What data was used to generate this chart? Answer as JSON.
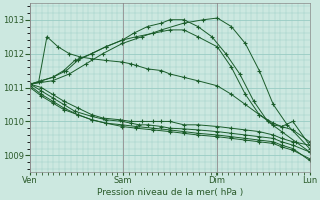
{
  "xlabel": "Pression niveau de la mer( hPa )",
  "bg_color": "#cce8e0",
  "grid_color": "#99ccc4",
  "line_color": "#1a5c2a",
  "ylim": [
    1008.5,
    1013.5
  ],
  "day_labels": [
    "Ven",
    "Sam",
    "Dim",
    "Lun"
  ],
  "day_positions": [
    0,
    0.333,
    0.667,
    1.0
  ],
  "series": [
    {
      "x": [
        0.0,
        0.08,
        0.13,
        0.17,
        0.22,
        0.27,
        0.33,
        0.37,
        0.42,
        0.47,
        0.5,
        0.55,
        0.6,
        0.65,
        0.7,
        0.75,
        0.8,
        0.85,
        0.9,
        0.95,
        1.0
      ],
      "y": [
        1011.1,
        1011.3,
        1011.5,
        1011.8,
        1012.0,
        1012.2,
        1012.4,
        1012.6,
        1012.8,
        1012.9,
        1013.0,
        1013.0,
        1012.8,
        1012.5,
        1012.0,
        1011.4,
        1010.6,
        1010.0,
        1009.7,
        1009.4,
        1009.1
      ]
    },
    {
      "x": [
        0.0,
        0.08,
        0.14,
        0.2,
        0.26,
        0.33,
        0.4,
        0.47,
        0.55,
        0.62,
        0.67,
        0.72,
        0.77,
        0.82,
        0.87,
        0.92,
        1.0
      ],
      "y": [
        1011.1,
        1011.2,
        1011.4,
        1011.7,
        1012.0,
        1012.3,
        1012.5,
        1012.7,
        1012.9,
        1013.0,
        1013.05,
        1012.8,
        1012.3,
        1011.5,
        1010.5,
        1009.9,
        1009.2
      ]
    },
    {
      "x": [
        0.0,
        0.04,
        0.08,
        0.12,
        0.16,
        0.22,
        0.27,
        0.33,
        0.38,
        0.44,
        0.5,
        0.55,
        0.6,
        0.67,
        0.72,
        0.77,
        0.82,
        0.87,
        0.9,
        0.94,
        1.0
      ],
      "y": [
        1011.1,
        1011.2,
        1011.3,
        1011.5,
        1011.8,
        1012.0,
        1012.2,
        1012.4,
        1012.5,
        1012.6,
        1012.7,
        1012.7,
        1012.5,
        1012.2,
        1011.6,
        1010.8,
        1010.2,
        1009.9,
        1009.85,
        1010.0,
        1009.3
      ]
    },
    {
      "x": [
        0.0,
        0.04,
        0.08,
        0.12,
        0.17,
        0.22,
        0.26,
        0.32,
        0.36,
        0.4,
        0.44,
        0.47,
        0.5,
        0.55,
        0.6,
        0.67,
        0.72,
        0.77,
        0.82,
        0.87,
        0.9,
        0.94,
        1.0
      ],
      "y": [
        1011.1,
        1011.0,
        1010.8,
        1010.6,
        1010.4,
        1010.2,
        1010.1,
        1010.05,
        1010.0,
        1010.0,
        1010.0,
        1010.0,
        1010.0,
        1009.9,
        1009.9,
        1009.85,
        1009.8,
        1009.75,
        1009.7,
        1009.6,
        1009.5,
        1009.4,
        1009.3
      ]
    },
    {
      "x": [
        0.0,
        0.04,
        0.08,
        0.12,
        0.16,
        0.22,
        0.27,
        0.33,
        0.36,
        0.39,
        0.42,
        0.47,
        0.5,
        0.55,
        0.6,
        0.67,
        0.72,
        0.77,
        0.82,
        0.87,
        0.9,
        0.94,
        1.0
      ],
      "y": [
        1011.1,
        1010.9,
        1010.7,
        1010.5,
        1010.3,
        1010.15,
        1010.05,
        1010.0,
        1009.95,
        1009.9,
        1009.9,
        1009.85,
        1009.8,
        1009.78,
        1009.75,
        1009.7,
        1009.65,
        1009.6,
        1009.55,
        1009.5,
        1009.4,
        1009.3,
        1009.1
      ]
    },
    {
      "x": [
        0.0,
        0.03,
        0.06,
        0.1,
        0.14,
        0.18,
        0.22,
        0.27,
        0.33,
        0.36,
        0.38,
        0.42,
        0.47,
        0.5,
        0.55,
        0.6,
        0.67,
        0.72,
        0.77,
        0.82,
        0.87,
        0.9,
        0.94,
        1.0
      ],
      "y": [
        1011.1,
        1011.15,
        1012.5,
        1012.2,
        1012.0,
        1011.9,
        1011.85,
        1011.8,
        1011.75,
        1011.7,
        1011.65,
        1011.55,
        1011.5,
        1011.4,
        1011.3,
        1011.2,
        1011.05,
        1010.8,
        1010.5,
        1010.2,
        1009.95,
        1009.85,
        1009.75,
        1009.4
      ]
    },
    {
      "x": [
        0.0,
        0.04,
        0.08,
        0.12,
        0.17,
        0.22,
        0.27,
        0.33,
        0.38,
        0.44,
        0.5,
        0.55,
        0.6,
        0.67,
        0.72,
        0.77,
        0.82,
        0.87,
        0.9,
        0.94,
        1.0
      ],
      "y": [
        1011.05,
        1010.8,
        1010.6,
        1010.4,
        1010.2,
        1010.05,
        1009.95,
        1009.85,
        1009.8,
        1009.75,
        1009.7,
        1009.65,
        1009.6,
        1009.55,
        1009.5,
        1009.45,
        1009.4,
        1009.35,
        1009.25,
        1009.15,
        1008.9
      ]
    },
    {
      "x": [
        0.0,
        0.04,
        0.08,
        0.12,
        0.17,
        0.22,
        0.27,
        0.33,
        0.38,
        0.44,
        0.5,
        0.55,
        0.6,
        0.67,
        0.72,
        0.77,
        0.82,
        0.87,
        0.9,
        0.94,
        1.0
      ],
      "y": [
        1011.0,
        1010.75,
        1010.55,
        1010.35,
        1010.2,
        1010.05,
        1009.95,
        1009.9,
        1009.85,
        1009.8,
        1009.75,
        1009.7,
        1009.65,
        1009.6,
        1009.55,
        1009.5,
        1009.45,
        1009.4,
        1009.3,
        1009.2,
        1008.85
      ]
    }
  ]
}
